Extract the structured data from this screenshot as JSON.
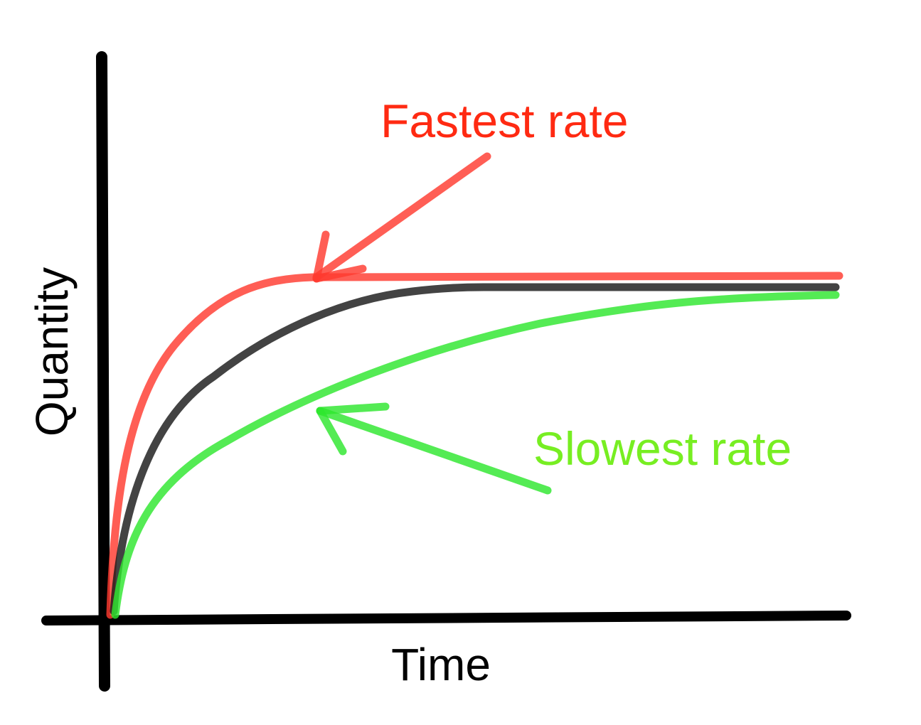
{
  "chart_data": {
    "type": "line",
    "title": "",
    "xlabel": "Time",
    "ylabel": "Quantity",
    "grid": false,
    "legend": "none",
    "series": [
      {
        "color": "#ff3b30",
        "plateau": 1.04,
        "rate": "fastest"
      },
      {
        "color": "#1a1a1a",
        "plateau": 1.0,
        "rate": "medium"
      },
      {
        "color": "#2ee62e",
        "plateau": 0.99,
        "rate": "slowest"
      }
    ],
    "annotations": [
      {
        "text": "Fastest rate",
        "color": "#ff2a12",
        "points_to": "red curve bend"
      },
      {
        "text": "Slowest rate",
        "color": "#77ee22",
        "points_to": "green curve"
      }
    ]
  }
}
